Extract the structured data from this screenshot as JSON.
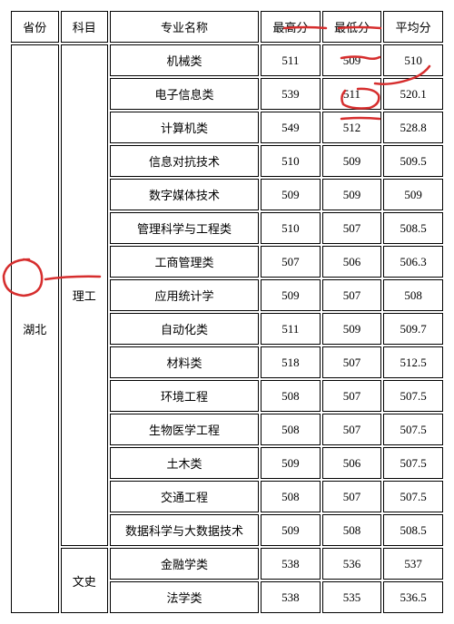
{
  "header": {
    "province": "省份",
    "subject": "科目",
    "major": "专业名称",
    "high": "最高分",
    "low": "最低分",
    "avg": "平均分"
  },
  "province": "湖北",
  "groups": [
    {
      "subject": "理工",
      "rows": [
        {
          "major": "机械类",
          "high": "511",
          "low": "509",
          "avg": "510"
        },
        {
          "major": "电子信息类",
          "high": "539",
          "low": "511",
          "avg": "520.1"
        },
        {
          "major": "计算机类",
          "high": "549",
          "low": "512",
          "avg": "528.8"
        },
        {
          "major": "信息对抗技术",
          "high": "510",
          "low": "509",
          "avg": "509.5"
        },
        {
          "major": "数字媒体技术",
          "high": "509",
          "low": "509",
          "avg": "509"
        },
        {
          "major": "管理科学与工程类",
          "high": "510",
          "low": "507",
          "avg": "508.5"
        },
        {
          "major": "工商管理类",
          "high": "507",
          "low": "506",
          "avg": "506.3"
        },
        {
          "major": "应用统计学",
          "high": "509",
          "low": "507",
          "avg": "508"
        },
        {
          "major": "自动化类",
          "high": "511",
          "low": "509",
          "avg": "509.7"
        },
        {
          "major": "材料类",
          "high": "518",
          "low": "507",
          "avg": "512.5"
        },
        {
          "major": "环境工程",
          "high": "508",
          "low": "507",
          "avg": "507.5"
        },
        {
          "major": "生物医学工程",
          "high": "508",
          "low": "507",
          "avg": "507.5"
        },
        {
          "major": "土木类",
          "high": "509",
          "low": "506",
          "avg": "507.5"
        },
        {
          "major": "交通工程",
          "high": "508",
          "low": "507",
          "avg": "507.5"
        },
        {
          "major": "数据科学与大数据技术",
          "high": "509",
          "low": "508",
          "avg": "508.5"
        }
      ]
    },
    {
      "subject": "文史",
      "rows": [
        {
          "major": "金融学类",
          "high": "538",
          "low": "536",
          "avg": "537"
        },
        {
          "major": "法学类",
          "high": "538",
          "low": "535",
          "avg": "536.5"
        }
      ]
    }
  ],
  "annotations": {
    "stroke": "#d62e2e",
    "stroke_width": 2.5
  }
}
